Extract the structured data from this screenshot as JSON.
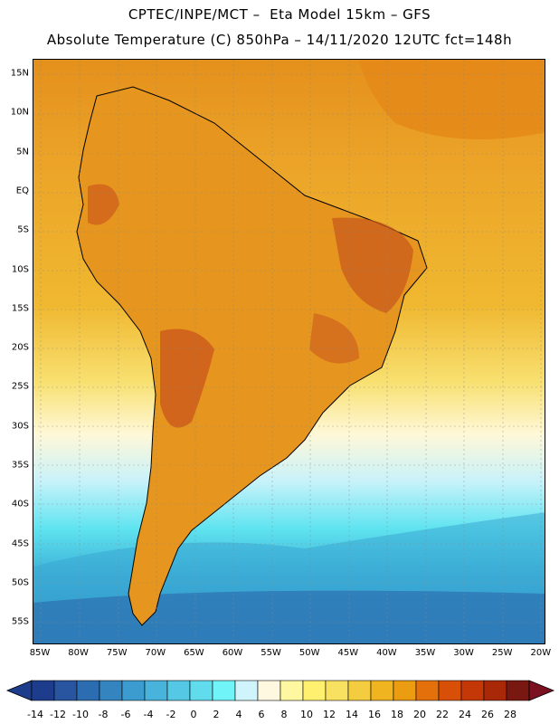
{
  "header": {
    "line1": "CPTEC/INPE/MCT –  Eta Model 15km – GFS",
    "line2": "Absolute Temperature (C) 850hPa – 14/11/2020 12UTC fct=148h"
  },
  "map": {
    "lat_labels": [
      "15N",
      "10N",
      "5N",
      "EQ",
      "5S",
      "10S",
      "15S",
      "20S",
      "25S",
      "30S",
      "35S",
      "40S",
      "45S",
      "50S",
      "55S"
    ],
    "lon_labels": [
      "85W",
      "80W",
      "75W",
      "70W",
      "65W",
      "60W",
      "55W",
      "50W",
      "45W",
      "40W",
      "35W",
      "30W",
      "25W",
      "20W"
    ],
    "colors": {
      "very_warm": "#c8501a",
      "warm": "#e09020",
      "mild": "#f0b030",
      "cool": "#f8d860",
      "pale": "#fff8d0",
      "cold": "#60e8f0",
      "colder": "#30b8d8",
      "coldest": "#2878b8"
    }
  },
  "legend": {
    "labels": [
      "-14",
      "-12",
      "-10",
      "-8",
      "-6",
      "-4",
      "-2",
      "0",
      "2",
      "4",
      "6",
      "8",
      "10",
      "12",
      "14",
      "16",
      "18",
      "20",
      "22",
      "24",
      "26",
      "28"
    ],
    "colors": [
      "#1e3c8c",
      "#2854a0",
      "#2c6cb0",
      "#3484c0",
      "#3c9cd0",
      "#48b4dc",
      "#54c8e4",
      "#60dcec",
      "#70f4f8",
      "#d0f4fc",
      "#fff8e0",
      "#fff8a0",
      "#fff070",
      "#f8e060",
      "#f4cc40",
      "#f0b420",
      "#ec9c10",
      "#e4700c",
      "#d85008",
      "#c43808",
      "#a82808",
      "#781810"
    ]
  }
}
